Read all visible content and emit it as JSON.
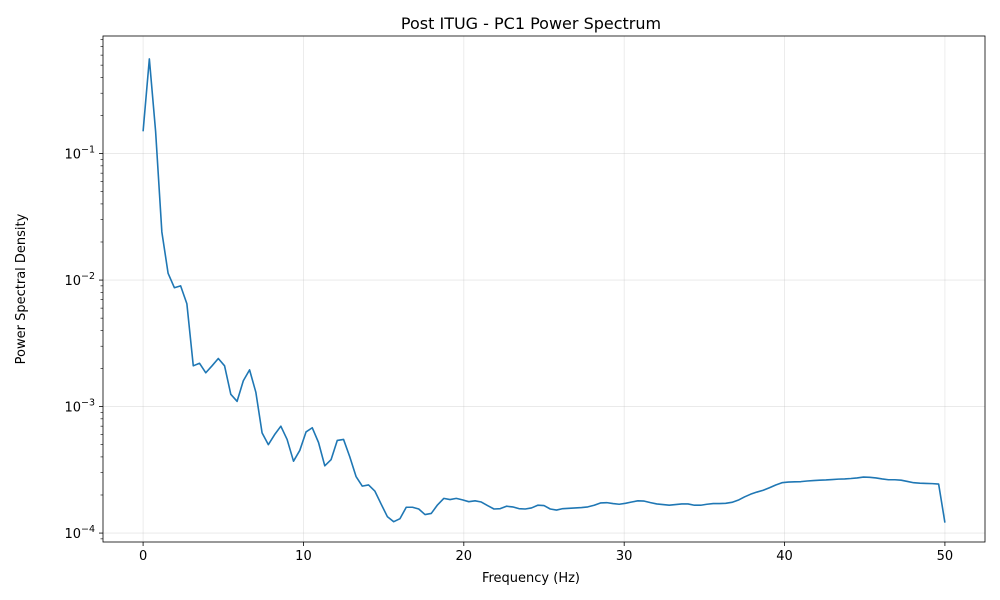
{
  "chart_data": {
    "type": "line",
    "title": "Post ITUG - PC1 Power Spectrum",
    "xlabel": "Frequency (Hz)",
    "ylabel": "Power Spectral Density",
    "yscale": "log",
    "xlim": [
      -2.5,
      52.5
    ],
    "ylim": [
      8.5e-05,
      0.85
    ],
    "grid": true,
    "line_color": "#1f77b4",
    "x_ticks": [
      {
        "value": 0,
        "label": "0"
      },
      {
        "value": 10,
        "label": "10"
      },
      {
        "value": 20,
        "label": "20"
      },
      {
        "value": 30,
        "label": "30"
      },
      {
        "value": 40,
        "label": "40"
      },
      {
        "value": 50,
        "label": "50"
      }
    ],
    "y_ticks": [
      {
        "value": 0.1,
        "base": "10",
        "exp": "−1"
      },
      {
        "value": 0.01,
        "base": "10",
        "exp": "−2"
      },
      {
        "value": 0.001,
        "base": "10",
        "exp": "−3"
      },
      {
        "value": 0.0001,
        "base": "10",
        "exp": "−4"
      }
    ],
    "x": [
      0,
      0.39,
      0.78,
      1.17,
      1.56,
      1.95,
      2.34,
      2.73,
      3.13,
      3.52,
      3.91,
      4.3,
      4.69,
      5.08,
      5.47,
      5.86,
      6.25,
      6.64,
      7.03,
      7.42,
      7.81,
      8.2,
      8.59,
      8.98,
      9.38,
      9.77,
      10.16,
      10.55,
      10.94,
      11.33,
      11.72,
      12.11,
      12.5,
      12.89,
      13.28,
      13.67,
      14.06,
      14.45,
      14.84,
      15.23,
      15.63,
      16.02,
      16.41,
      16.8,
      17.19,
      17.58,
      17.97,
      18.36,
      18.75,
      19.14,
      19.53,
      19.92,
      20.31,
      20.7,
      21.09,
      21.48,
      21.88,
      22.27,
      22.66,
      23.05,
      23.44,
      23.83,
      24.22,
      24.61,
      25.0,
      25.39,
      25.78,
      26.17,
      26.56,
      26.95,
      27.34,
      27.73,
      28.13,
      28.52,
      28.91,
      29.3,
      29.69,
      30.08,
      30.47,
      30.86,
      31.25,
      31.64,
      32.03,
      32.42,
      32.81,
      33.2,
      33.59,
      33.98,
      34.38,
      34.77,
      35.16,
      35.55,
      35.94,
      36.33,
      36.72,
      37.11,
      37.5,
      37.89,
      38.28,
      38.67,
      39.06,
      39.45,
      39.84,
      40.23,
      40.63,
      41.02,
      41.41,
      41.8,
      42.19,
      42.58,
      42.97,
      43.36,
      43.75,
      44.14,
      44.53,
      44.92,
      45.31,
      45.7,
      46.09,
      46.48,
      46.88,
      47.27,
      47.66,
      48.05,
      48.44,
      48.83,
      49.22,
      49.61,
      50.0
    ],
    "series": [
      {
        "values": [
          0.15,
          0.56,
          0.15,
          0.024,
          0.0113,
          0.0087,
          0.009,
          0.0065,
          0.0021,
          0.0022,
          0.00185,
          0.0021,
          0.0024,
          0.0021,
          0.00125,
          0.0011,
          0.0016,
          0.00195,
          0.0013,
          0.00062,
          0.0005,
          0.0006,
          0.0007,
          0.00055,
          0.00037,
          0.00045,
          0.00063,
          0.00068,
          0.00052,
          0.00034,
          0.00038,
          0.00054,
          0.00055,
          0.0004,
          0.00028,
          0.000235,
          0.00024,
          0.000215,
          0.00017,
          0.000135,
          0.000123,
          0.00013,
          0.00016,
          0.00016,
          0.000155,
          0.00014,
          0.000143,
          0.000167,
          0.000188,
          0.000184,
          0.000188,
          0.000183,
          0.000177,
          0.00018,
          0.000176,
          0.000165,
          0.000155,
          0.000156,
          0.000163,
          0.000161,
          0.000156,
          0.000155,
          0.000158,
          0.000166,
          0.000165,
          0.000155,
          0.000152,
          0.000156,
          0.000157,
          0.000158,
          0.000159,
          0.000161,
          0.000166,
          0.000173,
          0.000174,
          0.000171,
          0.000169,
          0.000172,
          0.000176,
          0.00018,
          0.000179,
          0.000174,
          0.00017,
          0.000168,
          0.000166,
          0.000168,
          0.00017,
          0.00017,
          0.000166,
          0.000166,
          0.000169,
          0.000171,
          0.000171,
          0.000172,
          0.000175,
          0.000182,
          0.000193,
          0.000203,
          0.000211,
          0.000218,
          0.000228,
          0.00024,
          0.00025,
          0.000253,
          0.000254,
          0.000255,
          0.000258,
          0.00026,
          0.000262,
          0.000263,
          0.000265,
          0.000267,
          0.000268,
          0.00027,
          0.000273,
          0.000277,
          0.000276,
          0.000273,
          0.000268,
          0.000264,
          0.000264,
          0.000262,
          0.000256,
          0.00025,
          0.000248,
          0.000247,
          0.000246,
          0.000244,
          0.000121
        ]
      }
    ]
  }
}
